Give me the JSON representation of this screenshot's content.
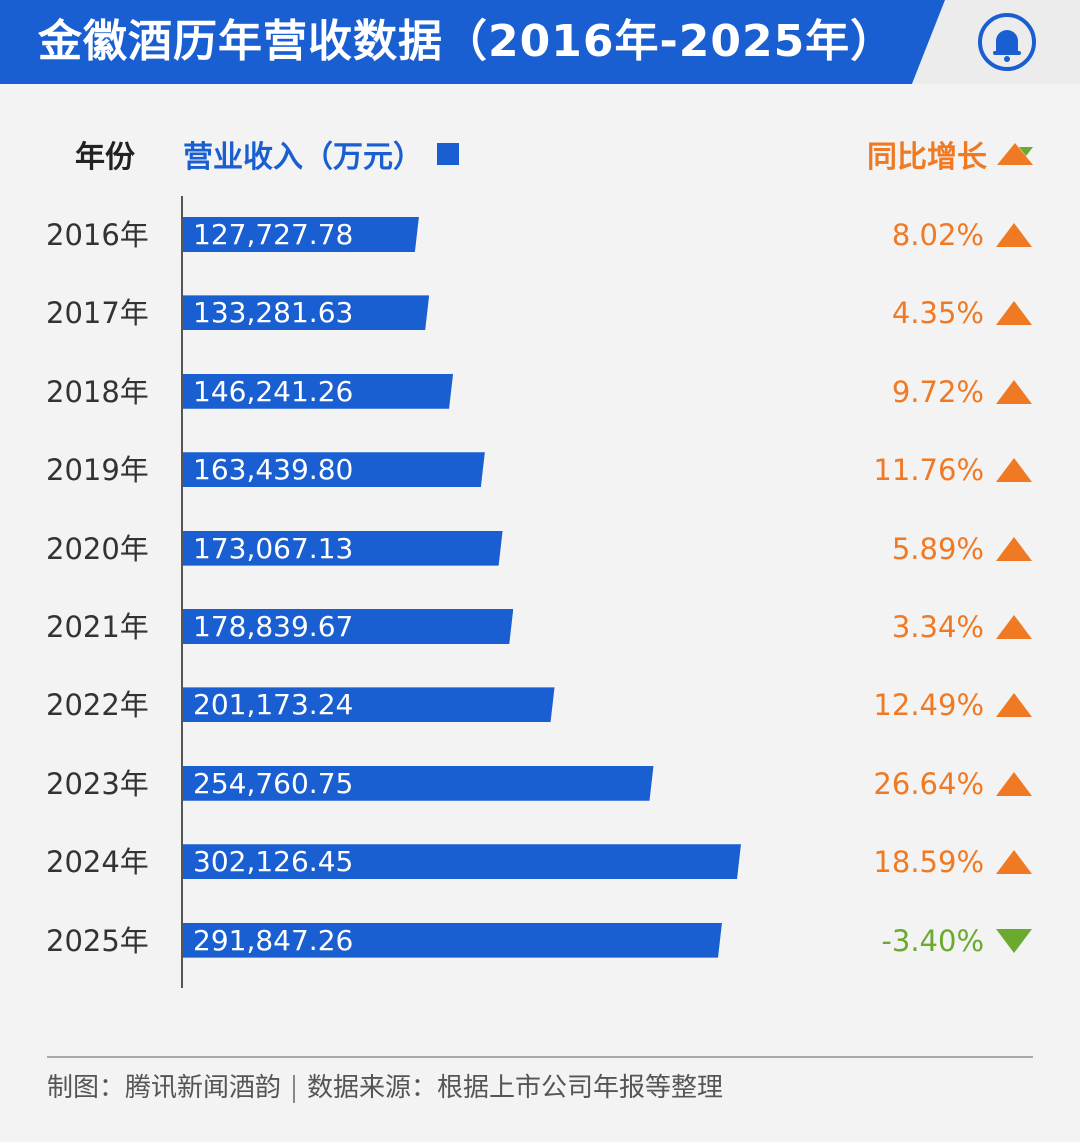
{
  "header": {
    "title": "金徽酒历年营收数据（2016年-2025年）"
  },
  "legend": {
    "year_label": "年份",
    "revenue_label": "营业收入（万元）",
    "growth_label": "同比增长"
  },
  "colors": {
    "bar": "#1a5fd1",
    "up": "#f07a24",
    "down": "#6aaa2e"
  },
  "chart_data": {
    "type": "bar",
    "orientation": "horizontal",
    "categories": [
      "2016年",
      "2017年",
      "2018年",
      "2019年",
      "2020年",
      "2021年",
      "2022年",
      "2023年",
      "2024年",
      "2025年"
    ],
    "series": [
      {
        "values": [
          127727.78,
          133281.63,
          146241.26,
          163439.8,
          173067.13,
          178839.67,
          201173.24,
          254760.75,
          302126.45,
          291847.26
        ],
        "labels": [
          "127,727.78",
          "133,281.63",
          "146,241.26",
          "163,439.80",
          "173,067.13",
          "178,839.67",
          "201,173.24",
          "254,760.75",
          "302,126.45",
          "291,847.26"
        ]
      }
    ],
    "growth": [
      "8.02%",
      "4.35%",
      "9.72%",
      "11.76%",
      "5.89%",
      "3.34%",
      "12.49%",
      "26.64%",
      "18.59%",
      "-3.40%"
    ],
    "growth_direction": [
      "up",
      "up",
      "up",
      "up",
      "up",
      "up",
      "up",
      "up",
      "up",
      "down"
    ],
    "xlim": [
      0,
      320000
    ]
  },
  "footer": {
    "credit": "制图：腾讯新闻酒韵",
    "source": "数据来源：根据上市公司年报等整理"
  }
}
